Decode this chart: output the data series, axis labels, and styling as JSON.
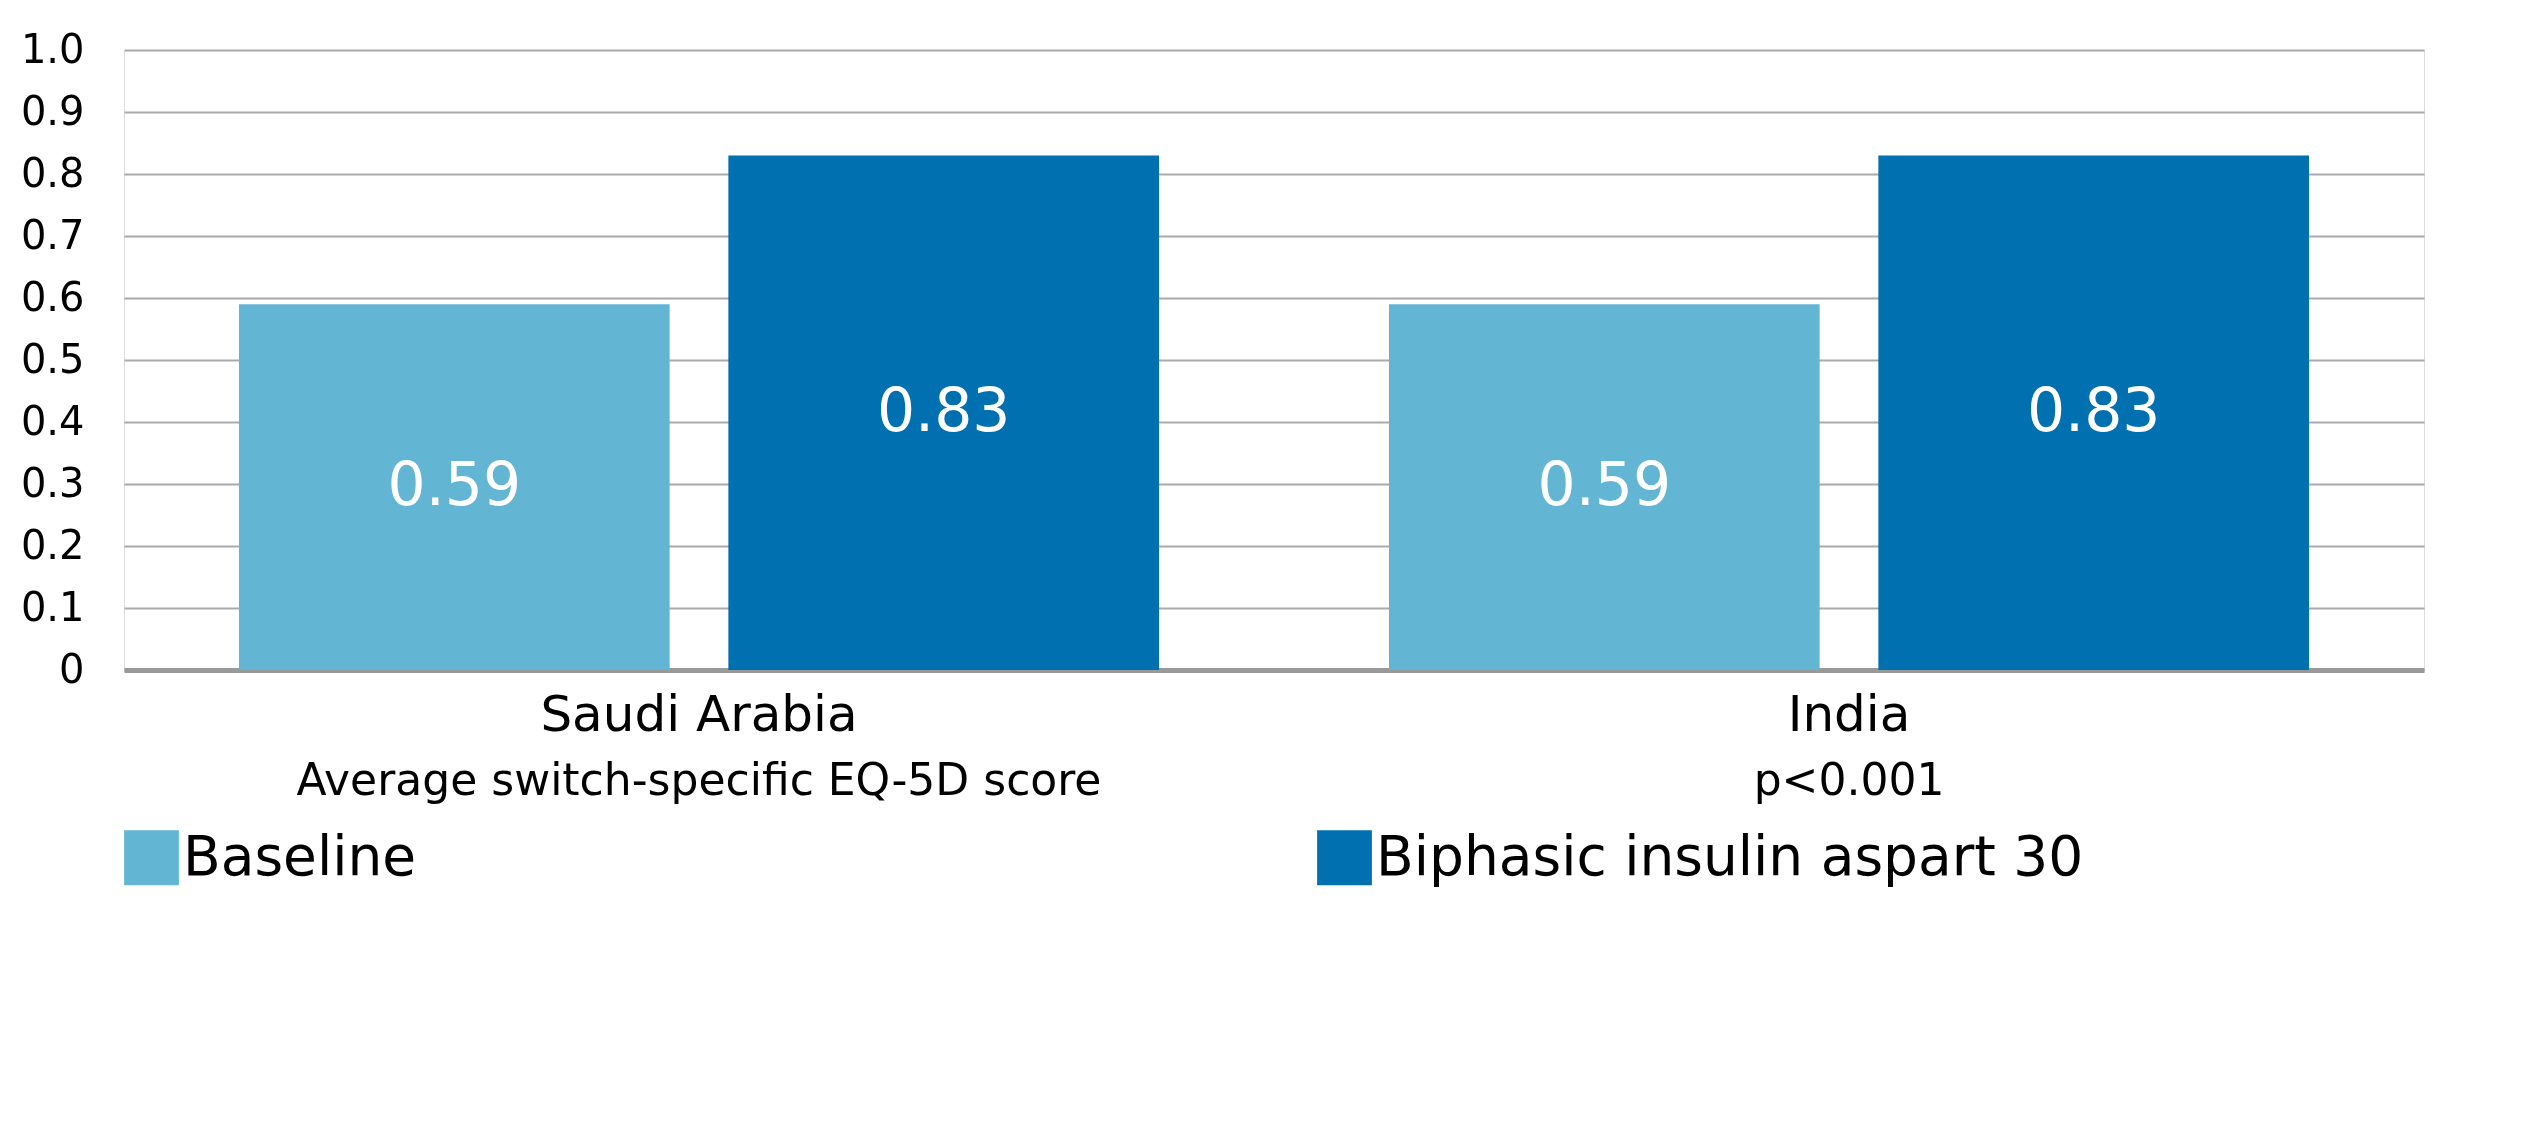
{
  "chart_data": {
    "type": "bar",
    "categories": [
      "Saudi Arabia",
      "India"
    ],
    "series": [
      {
        "name": "Baseline",
        "color": "#62b6d3",
        "values": [
          0.59,
          0.59
        ]
      },
      {
        "name": "Biphasic insulin aspart 30",
        "color": "#0070b0",
        "values": [
          0.83,
          0.83
        ]
      }
    ],
    "ylim": [
      0,
      1.0
    ],
    "yticks": [
      0,
      0.1,
      0.2,
      0.3,
      0.4,
      0.5,
      0.6,
      0.7,
      0.8,
      0.9,
      {
        "value": 1.0,
        "label": "1.0"
      }
    ],
    "annotations": [
      "Average switch-specific EQ-5D score",
      "p<0.001"
    ],
    "data_labels": true,
    "grid": "y",
    "legend": "bottom"
  }
}
